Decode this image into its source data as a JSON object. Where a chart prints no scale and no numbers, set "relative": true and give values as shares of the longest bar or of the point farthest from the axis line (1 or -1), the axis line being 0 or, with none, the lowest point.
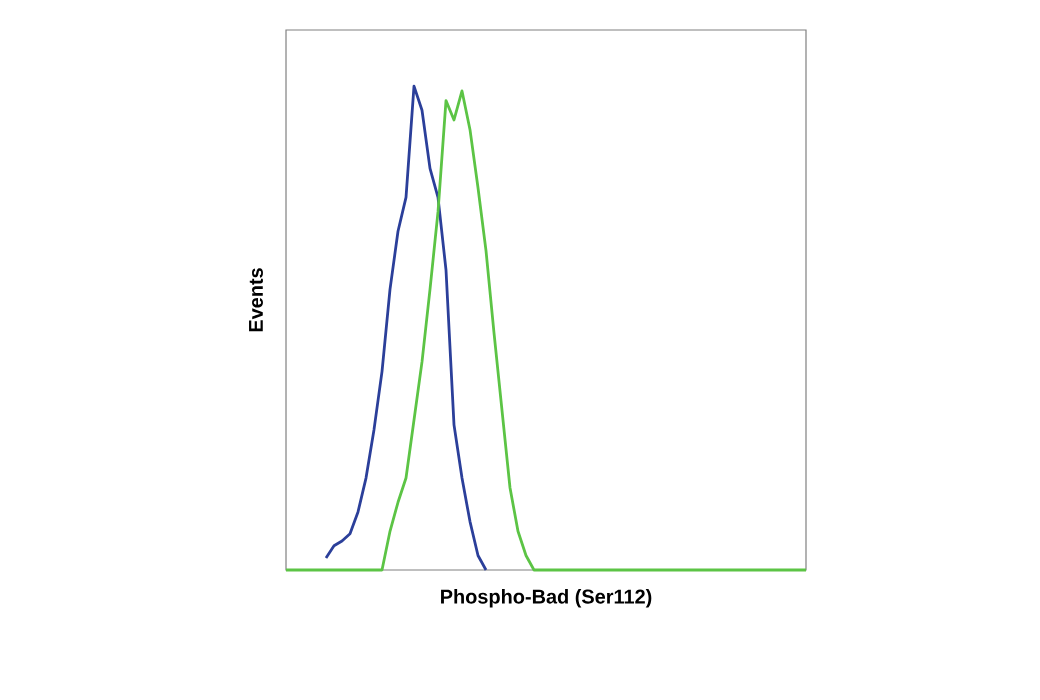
{
  "chart_data": {
    "type": "line",
    "xlabel": "Phospho-Bad (Ser112)",
    "ylabel": "Events",
    "relative": true,
    "marker": "none",
    "line_style": "solid",
    "categories": [
      null,
      null,
      null,
      null,
      null,
      null,
      null,
      null,
      null,
      null,
      null,
      null,
      null,
      null,
      null,
      null,
      null,
      null,
      null,
      null,
      null,
      null,
      null,
      null,
      null,
      null,
      null,
      null,
      null,
      null,
      null,
      null,
      null,
      null,
      null,
      null,
      null,
      null,
      null,
      null,
      null,
      null,
      null,
      null,
      null,
      null,
      null,
      null,
      null,
      null,
      null,
      null,
      null,
      null,
      null,
      null,
      null,
      null,
      null,
      null,
      null,
      null,
      null,
      null,
      null,
      null
    ],
    "series": [
      {
        "color": "#2b3f9a",
        "values": [
          null,
          null,
          null,
          null,
          null,
          0.025,
          0.05,
          0.06,
          0.075,
          0.12,
          0.19,
          0.29,
          0.41,
          0.58,
          0.7,
          0.77,
          1,
          0.95,
          0.83,
          0.77,
          0.62,
          0.3,
          0.19,
          0.1,
          0.03,
          0,
          null,
          null,
          null,
          null,
          null,
          null,
          null,
          null,
          null,
          null,
          null,
          null,
          null,
          null,
          null,
          null,
          null,
          null,
          null,
          null,
          null,
          null,
          null,
          null,
          null,
          null,
          null,
          null,
          null,
          null,
          null,
          null,
          null,
          null,
          null,
          null,
          null,
          null,
          null,
          null
        ]
      },
      {
        "color": "#5cc445",
        "values": [
          0,
          0,
          0,
          0,
          0,
          0,
          0,
          0,
          0,
          0,
          0,
          0,
          0,
          0.08,
          0.14,
          0.19,
          0.31,
          0.43,
          0.58,
          0.74,
          0.97,
          0.93,
          0.99,
          0.91,
          0.79,
          0.66,
          0.49,
          0.33,
          0.17,
          0.08,
          0.03,
          0,
          0,
          0,
          0,
          0,
          0,
          0,
          0,
          0,
          0,
          0,
          0,
          0,
          0,
          0,
          0,
          0,
          0,
          0,
          0,
          0,
          0,
          0,
          0,
          0,
          0,
          0,
          0,
          0,
          0,
          0,
          0,
          0,
          0,
          0
        ]
      }
    ]
  }
}
